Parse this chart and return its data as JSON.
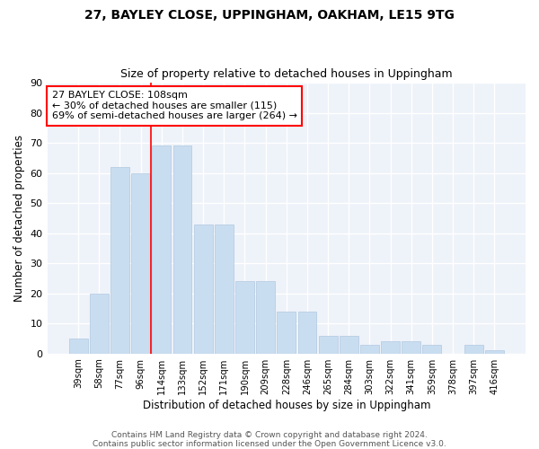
{
  "title1": "27, BAYLEY CLOSE, UPPINGHAM, OAKHAM, LE15 9TG",
  "title2": "Size of property relative to detached houses in Uppingham",
  "xlabel": "Distribution of detached houses by size in Uppingham",
  "ylabel": "Number of detached properties",
  "categories": [
    "39sqm",
    "58sqm",
    "77sqm",
    "96sqm",
    "114sqm",
    "133sqm",
    "152sqm",
    "171sqm",
    "190sqm",
    "209sqm",
    "228sqm",
    "246sqm",
    "265sqm",
    "284sqm",
    "303sqm",
    "322sqm",
    "341sqm",
    "359sqm",
    "378sqm",
    "397sqm",
    "416sqm"
  ],
  "values": [
    5,
    20,
    62,
    60,
    69,
    69,
    43,
    43,
    24,
    24,
    14,
    14,
    6,
    6,
    3,
    4,
    4,
    3,
    0,
    3,
    1
  ],
  "bar_color": "#c9ddf0",
  "bar_edge_color": "#b0c8e0",
  "vline_x": 3.5,
  "vline_color": "red",
  "annotation_text": "27 BAYLEY CLOSE: 108sqm\n← 30% of detached houses are smaller (115)\n69% of semi-detached houses are larger (264) →",
  "annotation_box_color": "red",
  "ylim": [
    0,
    90
  ],
  "yticks": [
    0,
    10,
    20,
    30,
    40,
    50,
    60,
    70,
    80,
    90
  ],
  "footnote1": "Contains HM Land Registry data © Crown copyright and database right 2024.",
  "footnote2": "Contains public sector information licensed under the Open Government Licence v3.0.",
  "bg_color": "#eef2f9"
}
